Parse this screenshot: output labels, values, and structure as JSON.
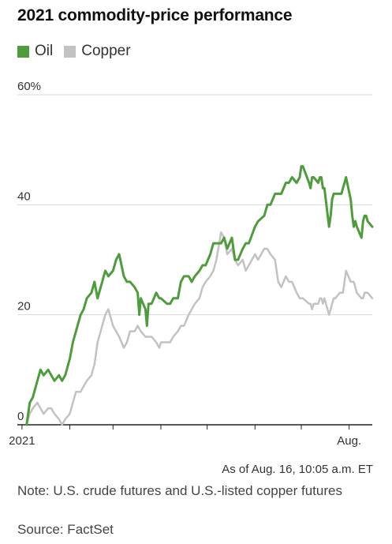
{
  "chart_data": {
    "type": "line",
    "title": "2021 commodity-price performance",
    "y_ticks": [
      {
        "value": 0,
        "label": "0"
      },
      {
        "value": 20,
        "label": "20"
      },
      {
        "value": 40,
        "label": "40"
      },
      {
        "value": 60,
        "label": "60%"
      }
    ],
    "x_ticks": [
      {
        "date": "2021-01-01",
        "label": "2021"
      },
      {
        "date": "2021-02-01",
        "label": ""
      },
      {
        "date": "2021-03-01",
        "label": ""
      },
      {
        "date": "2021-04-01",
        "label": ""
      },
      {
        "date": "2021-05-01",
        "label": ""
      },
      {
        "date": "2021-06-01",
        "label": ""
      },
      {
        "date": "2021-07-01",
        "label": ""
      },
      {
        "date": "2021-08-01",
        "label": "Aug."
      }
    ],
    "x_range": [
      "2020-12-29",
      "2021-08-16"
    ],
    "ylim": [
      0,
      60
    ],
    "grid": true,
    "legend_position": "top-left",
    "series": [
      {
        "name": "Oil",
        "color": "#4e9c3c",
        "points": [
          [
            "2021-01-04",
            0
          ],
          [
            "2021-01-06",
            4
          ],
          [
            "2021-01-08",
            5
          ],
          [
            "2021-01-11",
            8
          ],
          [
            "2021-01-13",
            10
          ],
          [
            "2021-01-15",
            9
          ],
          [
            "2021-01-18",
            10
          ],
          [
            "2021-01-20",
            9
          ],
          [
            "2021-01-22",
            8
          ],
          [
            "2021-01-25",
            9
          ],
          [
            "2021-01-27",
            8
          ],
          [
            "2021-01-29",
            9
          ],
          [
            "2021-02-01",
            12
          ],
          [
            "2021-02-03",
            15
          ],
          [
            "2021-02-05",
            17
          ],
          [
            "2021-02-08",
            20
          ],
          [
            "2021-02-10",
            21
          ],
          [
            "2021-02-12",
            23
          ],
          [
            "2021-02-15",
            24
          ],
          [
            "2021-02-17",
            26
          ],
          [
            "2021-02-19",
            23
          ],
          [
            "2021-02-22",
            26
          ],
          [
            "2021-02-24",
            28
          ],
          [
            "2021-02-26",
            27
          ],
          [
            "2021-03-01",
            28
          ],
          [
            "2021-03-03",
            30
          ],
          [
            "2021-03-05",
            31
          ],
          [
            "2021-03-08",
            27
          ],
          [
            "2021-03-10",
            26
          ],
          [
            "2021-03-12",
            26
          ],
          [
            "2021-03-15",
            25
          ],
          [
            "2021-03-17",
            24
          ],
          [
            "2021-03-18",
            20
          ],
          [
            "2021-03-19",
            23
          ],
          [
            "2021-03-22",
            21
          ],
          [
            "2021-03-23",
            18
          ],
          [
            "2021-03-24",
            22
          ],
          [
            "2021-03-26",
            22
          ],
          [
            "2021-03-29",
            24
          ],
          [
            "2021-03-31",
            23
          ],
          [
            "2021-04-01",
            23
          ],
          [
            "2021-04-05",
            22
          ],
          [
            "2021-04-07",
            22
          ],
          [
            "2021-04-09",
            23
          ],
          [
            "2021-04-12",
            23
          ],
          [
            "2021-04-14",
            26
          ],
          [
            "2021-04-16",
            27
          ],
          [
            "2021-04-19",
            27
          ],
          [
            "2021-04-21",
            26
          ],
          [
            "2021-04-23",
            27
          ],
          [
            "2021-04-26",
            28
          ],
          [
            "2021-04-28",
            29
          ],
          [
            "2021-04-30",
            29
          ],
          [
            "2021-05-03",
            31
          ],
          [
            "2021-05-05",
            33
          ],
          [
            "2021-05-07",
            33
          ],
          [
            "2021-05-10",
            33
          ],
          [
            "2021-05-12",
            34
          ],
          [
            "2021-05-14",
            32
          ],
          [
            "2021-05-17",
            34
          ],
          [
            "2021-05-19",
            30
          ],
          [
            "2021-05-21",
            30
          ],
          [
            "2021-05-24",
            32
          ],
          [
            "2021-05-26",
            33
          ],
          [
            "2021-05-28",
            33
          ],
          [
            "2021-06-01",
            36
          ],
          [
            "2021-06-03",
            37
          ],
          [
            "2021-06-07",
            38
          ],
          [
            "2021-06-09",
            40
          ],
          [
            "2021-06-11",
            40
          ],
          [
            "2021-06-14",
            42
          ],
          [
            "2021-06-16",
            42
          ],
          [
            "2021-06-18",
            42
          ],
          [
            "2021-06-21",
            44
          ],
          [
            "2021-06-23",
            44
          ],
          [
            "2021-06-25",
            45
          ],
          [
            "2021-06-28",
            44
          ],
          [
            "2021-06-30",
            45
          ],
          [
            "2021-07-01",
            47
          ],
          [
            "2021-07-02",
            47
          ],
          [
            "2021-07-06",
            44
          ],
          [
            "2021-07-07",
            43
          ],
          [
            "2021-07-08",
            45
          ],
          [
            "2021-07-09",
            45
          ],
          [
            "2021-07-12",
            44
          ],
          [
            "2021-07-13",
            45
          ],
          [
            "2021-07-14",
            45
          ],
          [
            "2021-07-15",
            43
          ],
          [
            "2021-07-16",
            43
          ],
          [
            "2021-07-19",
            36
          ],
          [
            "2021-07-20",
            38
          ],
          [
            "2021-07-21",
            41
          ],
          [
            "2021-07-22",
            42
          ],
          [
            "2021-07-23",
            42
          ],
          [
            "2021-07-26",
            42
          ],
          [
            "2021-07-27",
            42
          ],
          [
            "2021-07-28",
            43
          ],
          [
            "2021-07-29",
            44
          ],
          [
            "2021-07-30",
            45
          ],
          [
            "2021-08-02",
            41
          ],
          [
            "2021-08-03",
            38
          ],
          [
            "2021-08-04",
            36
          ],
          [
            "2021-08-05",
            37
          ],
          [
            "2021-08-06",
            36
          ],
          [
            "2021-08-09",
            34
          ],
          [
            "2021-08-10",
            37
          ],
          [
            "2021-08-11",
            38
          ],
          [
            "2021-08-12",
            38
          ],
          [
            "2021-08-13",
            37
          ],
          [
            "2021-08-16",
            36
          ]
        ]
      },
      {
        "name": "Copper",
        "color": "#c2c2c2",
        "points": [
          [
            "2021-01-04",
            0
          ],
          [
            "2021-01-06",
            2
          ],
          [
            "2021-01-08",
            3
          ],
          [
            "2021-01-11",
            4
          ],
          [
            "2021-01-13",
            3
          ],
          [
            "2021-01-15",
            2
          ],
          [
            "2021-01-18",
            3
          ],
          [
            "2021-01-20",
            3
          ],
          [
            "2021-01-22",
            2
          ],
          [
            "2021-01-25",
            1
          ],
          [
            "2021-01-27",
            0
          ],
          [
            "2021-01-29",
            1
          ],
          [
            "2021-02-01",
            2
          ],
          [
            "2021-02-03",
            4
          ],
          [
            "2021-02-05",
            6
          ],
          [
            "2021-02-08",
            6
          ],
          [
            "2021-02-10",
            7
          ],
          [
            "2021-02-12",
            8
          ],
          [
            "2021-02-15",
            9
          ],
          [
            "2021-02-17",
            11
          ],
          [
            "2021-02-19",
            15
          ],
          [
            "2021-02-22",
            18
          ],
          [
            "2021-02-24",
            20
          ],
          [
            "2021-02-26",
            21
          ],
          [
            "2021-03-01",
            18
          ],
          [
            "2021-03-03",
            17
          ],
          [
            "2021-03-05",
            16
          ],
          [
            "2021-03-08",
            14
          ],
          [
            "2021-03-10",
            15
          ],
          [
            "2021-03-12",
            17
          ],
          [
            "2021-03-15",
            17
          ],
          [
            "2021-03-17",
            18
          ],
          [
            "2021-03-19",
            17
          ],
          [
            "2021-03-22",
            16
          ],
          [
            "2021-03-24",
            16
          ],
          [
            "2021-03-26",
            16
          ],
          [
            "2021-03-29",
            15
          ],
          [
            "2021-03-31",
            14
          ],
          [
            "2021-04-01",
            15
          ],
          [
            "2021-04-05",
            15
          ],
          [
            "2021-04-07",
            15
          ],
          [
            "2021-04-09",
            16
          ],
          [
            "2021-04-12",
            17
          ],
          [
            "2021-04-14",
            18
          ],
          [
            "2021-04-16",
            18
          ],
          [
            "2021-04-19",
            20
          ],
          [
            "2021-04-21",
            21
          ],
          [
            "2021-04-23",
            22
          ],
          [
            "2021-04-26",
            23
          ],
          [
            "2021-04-28",
            25
          ],
          [
            "2021-04-30",
            26
          ],
          [
            "2021-05-03",
            27
          ],
          [
            "2021-05-05",
            28
          ],
          [
            "2021-05-07",
            30
          ],
          [
            "2021-05-10",
            35
          ],
          [
            "2021-05-12",
            34
          ],
          [
            "2021-05-14",
            31
          ],
          [
            "2021-05-17",
            32
          ],
          [
            "2021-05-19",
            30
          ],
          [
            "2021-05-21",
            29
          ],
          [
            "2021-05-24",
            30
          ],
          [
            "2021-05-26",
            28
          ],
          [
            "2021-05-28",
            29
          ],
          [
            "2021-06-01",
            31
          ],
          [
            "2021-06-03",
            30
          ],
          [
            "2021-06-07",
            32
          ],
          [
            "2021-06-09",
            32
          ],
          [
            "2021-06-11",
            31
          ],
          [
            "2021-06-14",
            30
          ],
          [
            "2021-06-16",
            26
          ],
          [
            "2021-06-18",
            25
          ],
          [
            "2021-06-21",
            27
          ],
          [
            "2021-06-23",
            26
          ],
          [
            "2021-06-25",
            26
          ],
          [
            "2021-06-28",
            24
          ],
          [
            "2021-06-30",
            23
          ],
          [
            "2021-07-01",
            23
          ],
          [
            "2021-07-02",
            23
          ],
          [
            "2021-07-06",
            22
          ],
          [
            "2021-07-07",
            22
          ],
          [
            "2021-07-08",
            21
          ],
          [
            "2021-07-09",
            22
          ],
          [
            "2021-07-12",
            22
          ],
          [
            "2021-07-13",
            23
          ],
          [
            "2021-07-14",
            23
          ],
          [
            "2021-07-15",
            22
          ],
          [
            "2021-07-16",
            23
          ],
          [
            "2021-07-19",
            20
          ],
          [
            "2021-07-20",
            21
          ],
          [
            "2021-07-21",
            22
          ],
          [
            "2021-07-22",
            23
          ],
          [
            "2021-07-23",
            23
          ],
          [
            "2021-07-26",
            24
          ],
          [
            "2021-07-27",
            24
          ],
          [
            "2021-07-28",
            24
          ],
          [
            "2021-07-29",
            26
          ],
          [
            "2021-07-30",
            28
          ],
          [
            "2021-08-02",
            26
          ],
          [
            "2021-08-03",
            26
          ],
          [
            "2021-08-04",
            26
          ],
          [
            "2021-08-05",
            25
          ],
          [
            "2021-08-06",
            24
          ],
          [
            "2021-08-09",
            23
          ],
          [
            "2021-08-10",
            23
          ],
          [
            "2021-08-11",
            24
          ],
          [
            "2021-08-12",
            24
          ],
          [
            "2021-08-13",
            24
          ],
          [
            "2021-08-16",
            23
          ]
        ]
      }
    ]
  },
  "as_of": "As of Aug. 16, 10:05 a.m. ET",
  "note": "Note: U.S. crude futures and U.S.-listed copper futures",
  "source": "Source: FactSet",
  "colors": {
    "grid": "#d9d9d9",
    "axis": "#222222",
    "oil": "#4e9c3c",
    "copper": "#c2c2c2"
  }
}
